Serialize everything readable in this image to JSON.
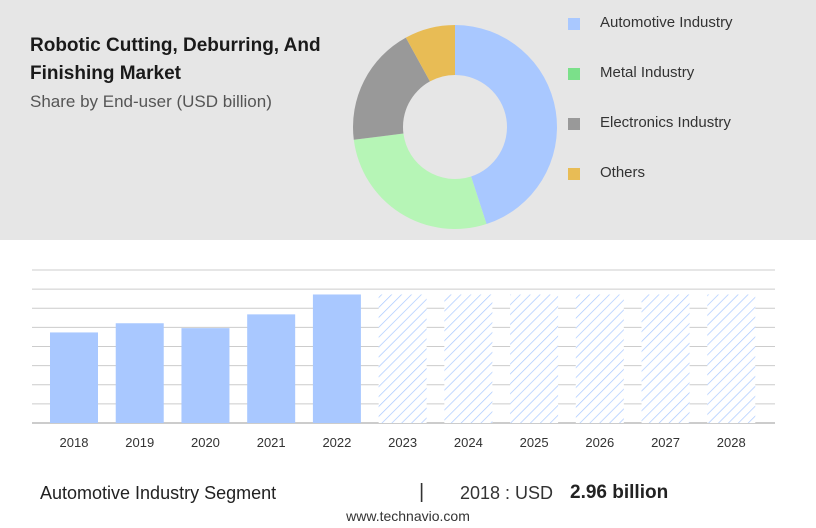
{
  "header": {
    "title": "Robotic Cutting, Deburring, And Finishing Market",
    "subtitle": "Share by End-user (USD billion)"
  },
  "colors": {
    "blue": "#a9c8ff",
    "green": "#b6f5b6",
    "gray": "#999999",
    "yellow": "#e8bc55",
    "legend_green": "#7be08a",
    "hatch": "#a9c8ff",
    "grid": "#cccccc"
  },
  "chart_data": [
    {
      "type": "pie",
      "donut": true,
      "legend_position": "right",
      "categories": [
        "Automotive Industry",
        "Metal Industry",
        "Electronics Industry",
        "Others"
      ],
      "values": [
        45,
        28,
        19,
        8
      ],
      "colors": [
        "#a9c8ff",
        "#b6f5b6",
        "#999999",
        "#e8bc55"
      ]
    },
    {
      "type": "bar",
      "categories": [
        "2018",
        "2019",
        "2020",
        "2021",
        "2022",
        "2023",
        "2024",
        "2025",
        "2026",
        "2027",
        "2028"
      ],
      "values": [
        2.96,
        3.26,
        3.1,
        3.55,
        4.2,
        4.2,
        4.2,
        4.2,
        4.2,
        4.2,
        4.2
      ],
      "forecast_from": "2023",
      "grid": true,
      "ylim": [
        0,
        5
      ]
    }
  ],
  "footer": {
    "segment": "Automotive Industry Segment",
    "divider": "|",
    "year_label": "2018 : USD",
    "value": "2.96 billion",
    "source": "www.technavio.com"
  }
}
